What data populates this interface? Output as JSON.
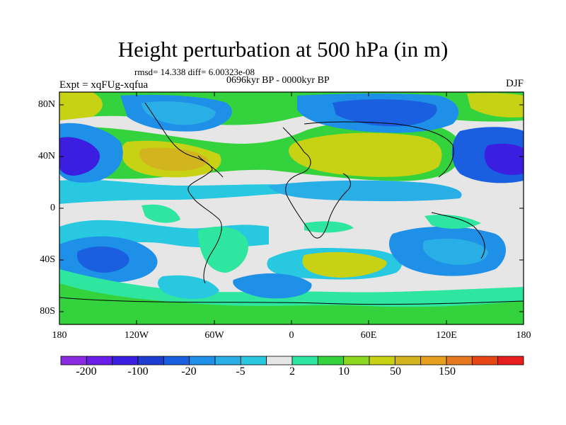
{
  "title": "Height perturbation at 500 hPa (in m)",
  "stats": "rmsd= 14.338 diff= 6.00323e-08",
  "period": "0696kyr BP - 0000kyr BP",
  "experiment": "Expt = xqFUg-xqfua",
  "season": "DJF",
  "y_ticks": [
    "80N",
    "40N",
    "0",
    "40S",
    "80S"
  ],
  "x_ticks": [
    "180",
    "120W",
    "60W",
    "0",
    "60E",
    "120E",
    "180"
  ],
  "colorbar": {
    "labels": [
      "-200",
      "-100",
      "-20",
      "-5",
      "2",
      "10",
      "50",
      "150"
    ],
    "colors": [
      "#8a2be2",
      "#6a1de8",
      "#3c1ee0",
      "#1e3ccf",
      "#1a5fe0",
      "#1e90e8",
      "#2aaee6",
      "#28c8e0",
      "#e6e6e6",
      "#2ee6a0",
      "#34d23c",
      "#8cd61e",
      "#c8d214",
      "#d2b41e",
      "#e6a01e",
      "#e6781e",
      "#e64614",
      "#e61e1e"
    ]
  },
  "fields": {
    "ocean_gray": "#e6e6e6",
    "coast_color": "#000000"
  }
}
